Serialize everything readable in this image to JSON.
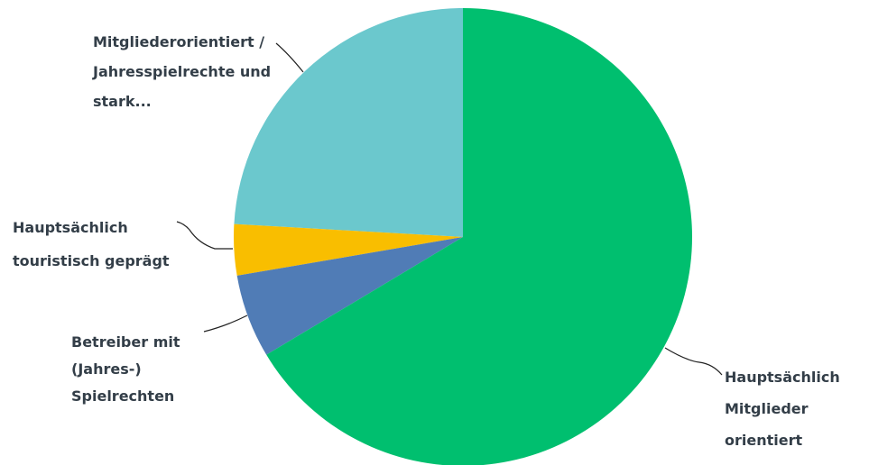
{
  "chart_data": {
    "type": "pie",
    "categories": [
      "Hauptsächlich Mitglieder orientiert",
      "Betreiber mit (Jahres-) Spielrechten",
      "Hauptsächlich touristisch geprägt",
      "Mitgliederorientiert / Jahresspielrechte und stark..."
    ],
    "values": [
      66.4,
      5.9,
      3.6,
      24.1
    ],
    "colors": [
      "#00bf6f",
      "#507cb6",
      "#f9be00",
      "#6bc8cd"
    ]
  }
}
